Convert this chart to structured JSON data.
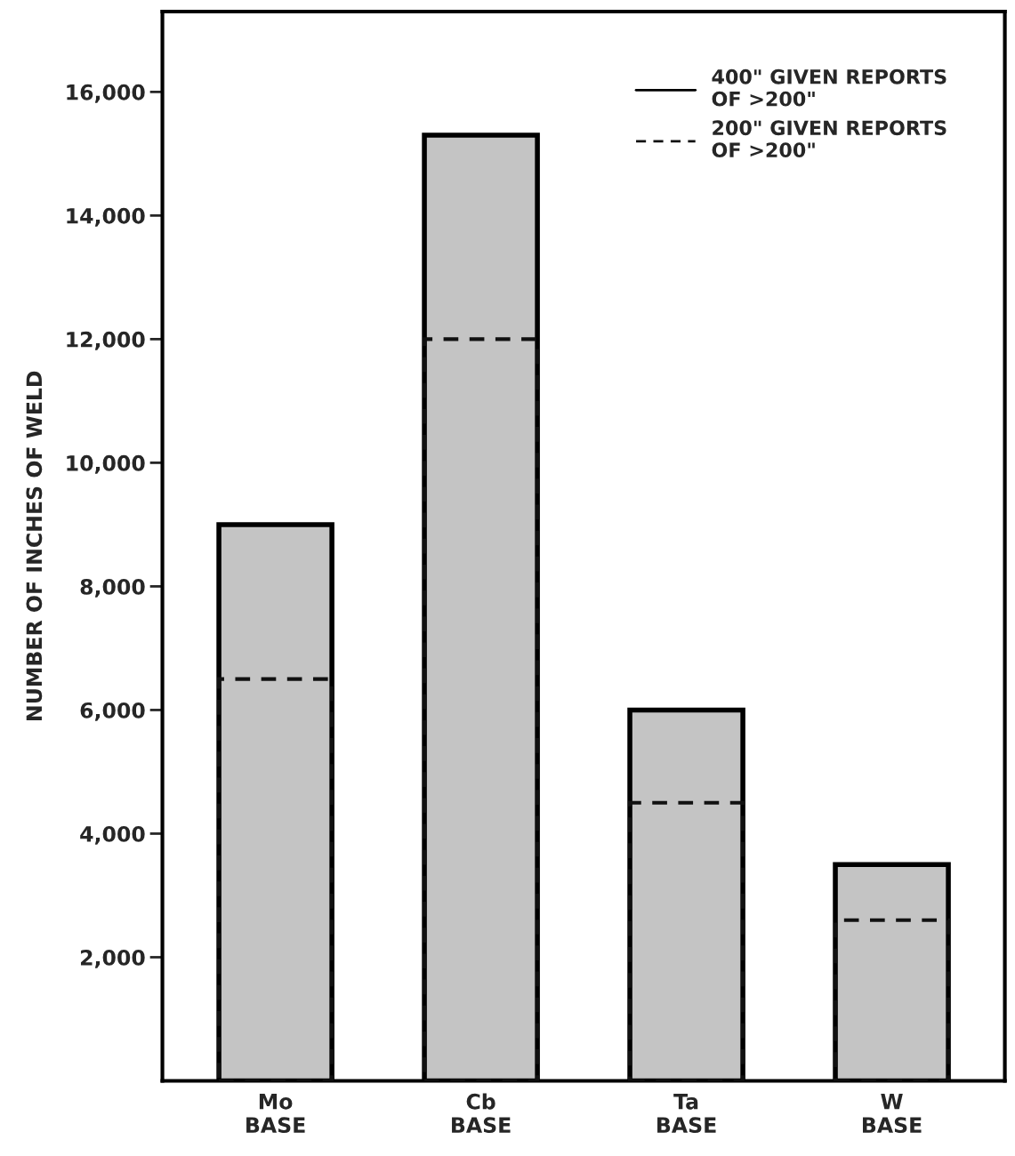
{
  "chart_data": {
    "type": "bar",
    "ylabel": "NUMBER OF INCHES OF WELD",
    "categories": [
      "Mo\nBASE",
      "Cb\nBASE",
      "Ta\nBASE",
      "W\nBASE"
    ],
    "series": [
      {
        "name": "400\" GIVEN REPORTS\nOF >200\"",
        "color": "#c4c4c4",
        "line_style": "solid",
        "values": [
          9000,
          15300,
          6000,
          3500
        ]
      },
      {
        "name": "200\" GIVEN REPORTS\nOF >200\"",
        "color": "#111111",
        "line_style": "dashed",
        "values": [
          6500,
          12000,
          4500,
          2600
        ]
      }
    ],
    "ylim": [
      0,
      17300
    ],
    "yticks": [
      {
        "value": 2000,
        "label": "2,000"
      },
      {
        "value": 4000,
        "label": "4,000"
      },
      {
        "value": 6000,
        "label": "6,000"
      },
      {
        "value": 8000,
        "label": "8,000"
      },
      {
        "value": 10000,
        "label": "10,000"
      },
      {
        "value": 12000,
        "label": "12,000"
      },
      {
        "value": 14000,
        "label": "14,000"
      },
      {
        "value": 16000,
        "label": "16,000"
      }
    ],
    "grid": false,
    "legend": "top right"
  }
}
